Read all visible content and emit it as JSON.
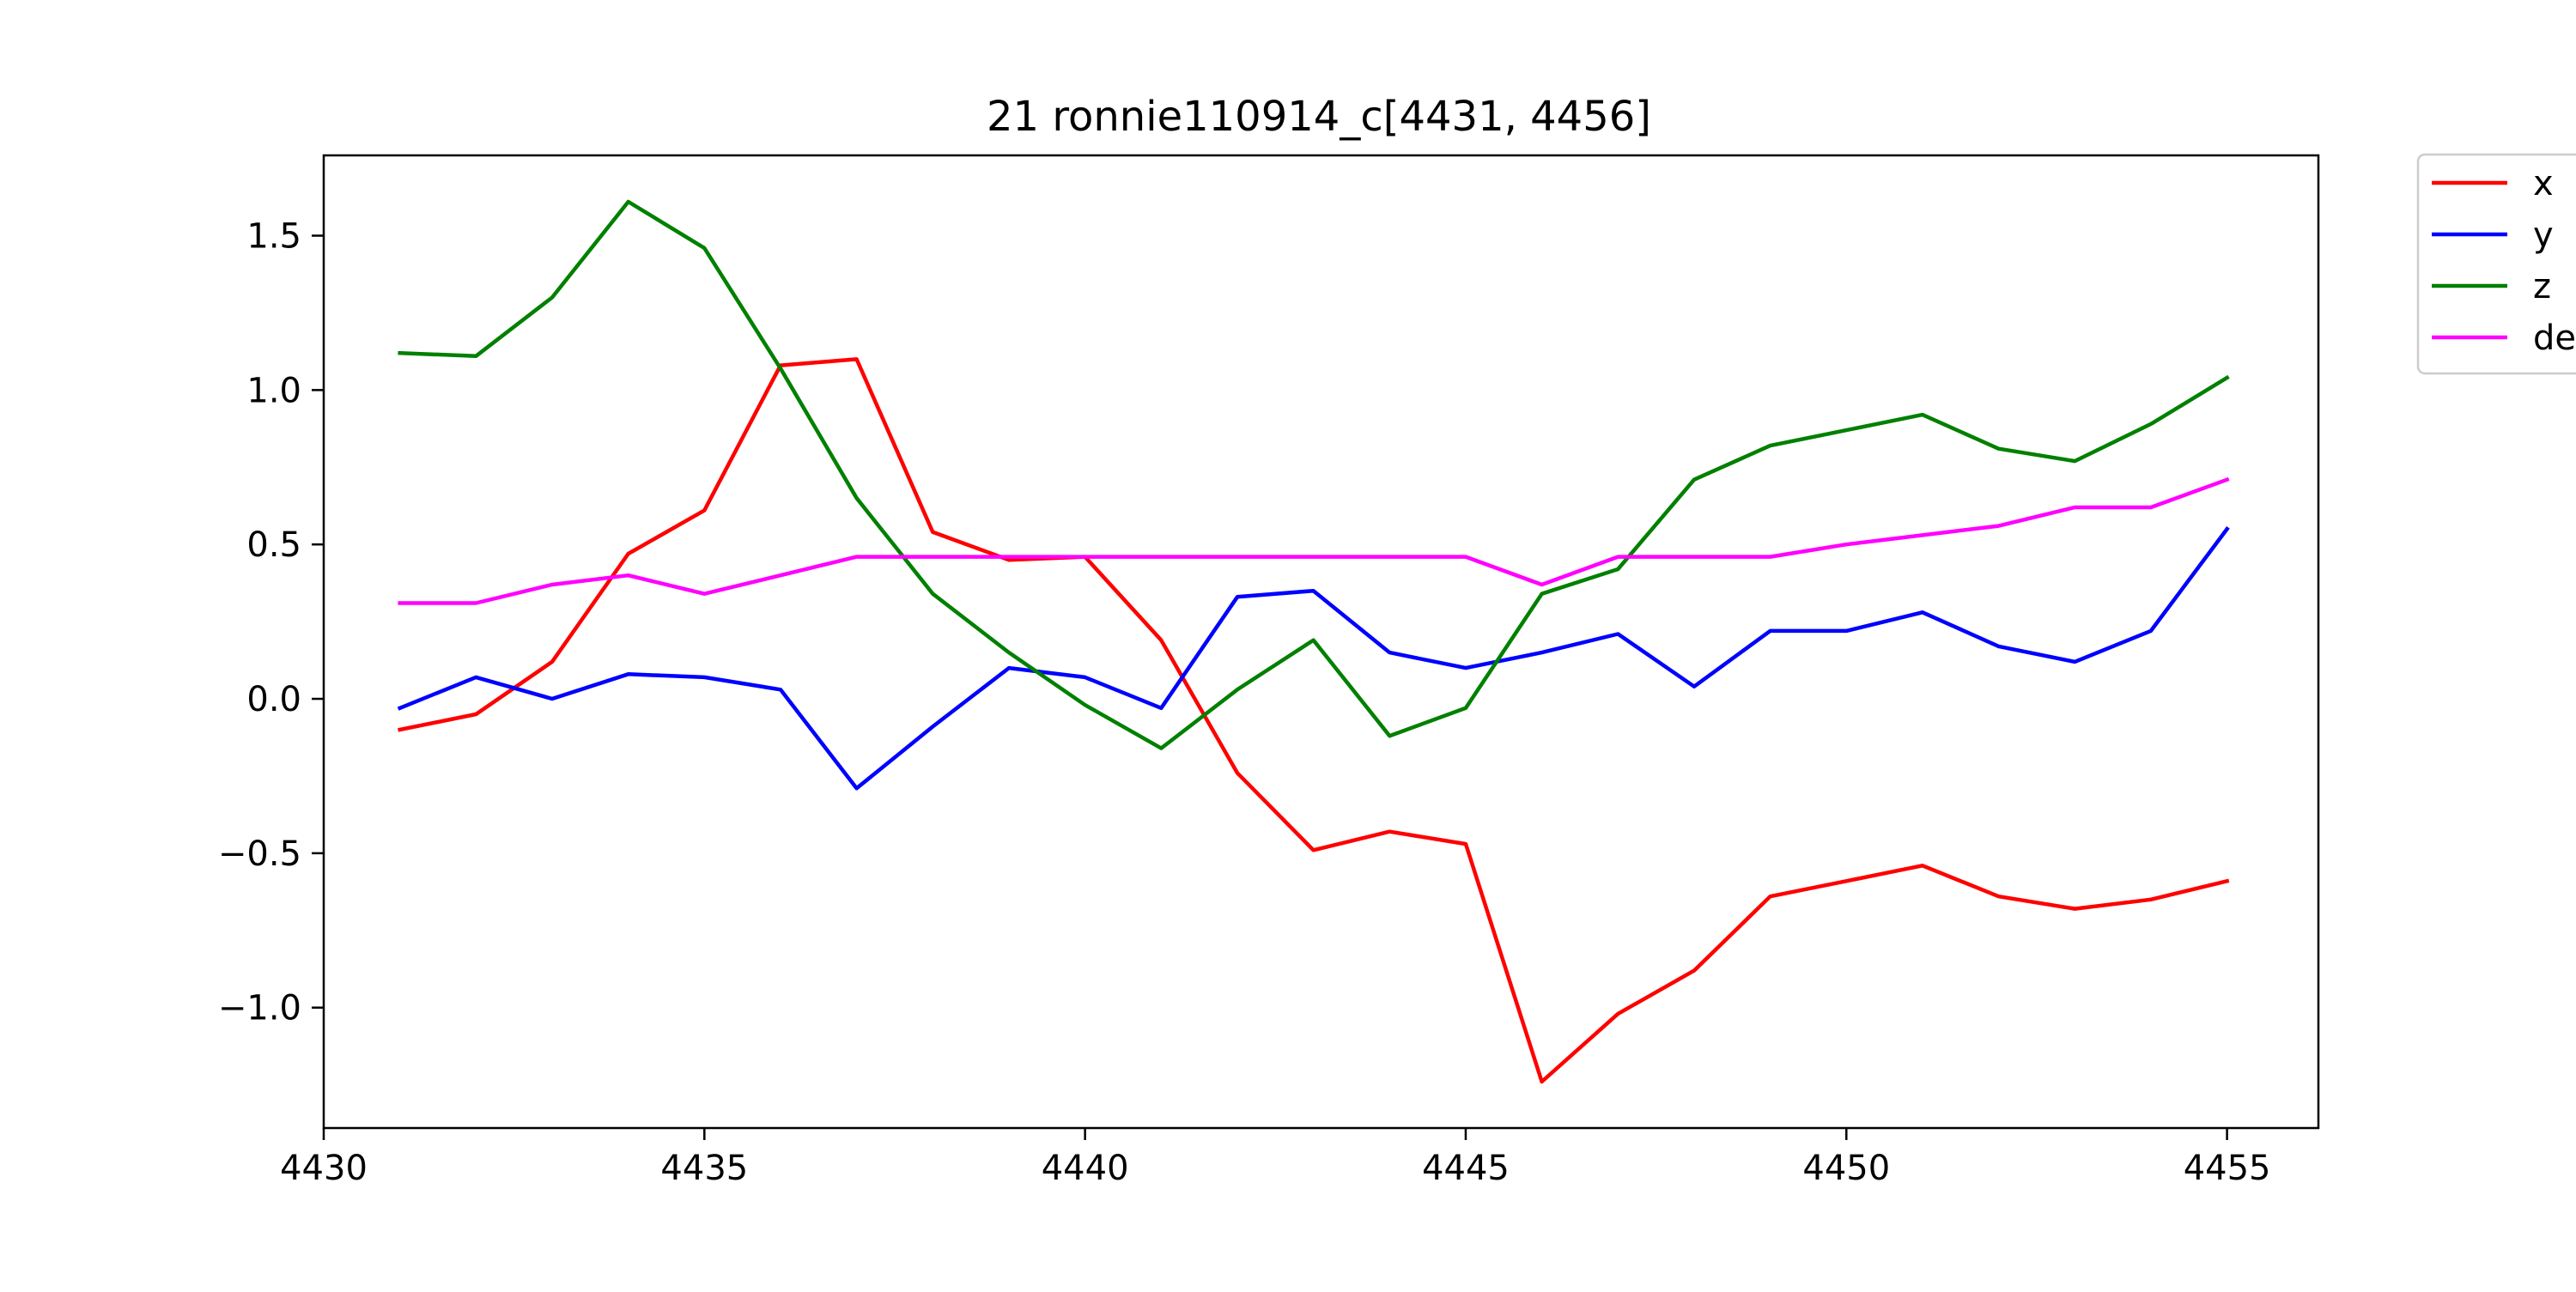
{
  "chart_data": {
    "type": "line",
    "title": "21 ronnie110914_c[4431, 4456]",
    "xlabel": "",
    "ylabel": "",
    "x": [
      4431,
      4432,
      4433,
      4434,
      4435,
      4436,
      4437,
      4438,
      4439,
      4440,
      4441,
      4442,
      4443,
      4444,
      4445,
      4446,
      4447,
      4448,
      4449,
      4450,
      4451,
      4452,
      4453,
      4454,
      4455
    ],
    "xlim": [
      4430.0,
      4456.2
    ],
    "ylim": [
      -1.39,
      1.76
    ],
    "xticks": [
      4430,
      4435,
      4440,
      4445,
      4450,
      4455
    ],
    "xtick_labels": [
      "4430",
      "4435",
      "4440",
      "4445",
      "4450",
      "4455"
    ],
    "yticks": [
      -1.0,
      -0.5,
      0.0,
      0.5,
      1.0,
      1.5
    ],
    "ytick_labels": [
      "−1.0",
      "−0.5",
      "0.0",
      "0.5",
      "1.0",
      "1.5"
    ],
    "grid": false,
    "legend_position": "outside-top-right",
    "series": [
      {
        "name": "x",
        "color": "#ff0000",
        "values": [
          -0.1,
          -0.05,
          0.12,
          0.47,
          0.61,
          1.08,
          1.1,
          0.54,
          0.45,
          0.46,
          0.19,
          -0.24,
          -0.49,
          -0.43,
          -0.47,
          -1.24,
          -1.02,
          -0.88,
          -0.64,
          -0.59,
          -0.54,
          -0.64,
          -0.68,
          -0.65,
          -0.59
        ]
      },
      {
        "name": "y",
        "color": "#0000ff",
        "values": [
          -0.03,
          0.07,
          0.0,
          0.08,
          0.07,
          0.03,
          -0.29,
          -0.09,
          0.1,
          0.07,
          -0.03,
          0.33,
          0.35,
          0.15,
          0.1,
          0.15,
          0.21,
          0.04,
          0.22,
          0.22,
          0.28,
          0.17,
          0.12,
          0.22,
          0.55
        ]
      },
      {
        "name": "z",
        "color": "#008000",
        "values": [
          1.12,
          1.11,
          1.3,
          1.61,
          1.46,
          1.07,
          0.65,
          0.34,
          0.15,
          -0.02,
          -0.16,
          0.03,
          0.19,
          -0.12,
          -0.03,
          0.34,
          0.42,
          0.71,
          0.82,
          0.87,
          0.92,
          0.81,
          0.77,
          0.89,
          1.04
        ]
      },
      {
        "name": "de",
        "color": "#ff00ff",
        "values": [
          0.31,
          0.31,
          0.37,
          0.4,
          0.34,
          0.4,
          0.46,
          0.46,
          0.46,
          0.46,
          0.46,
          0.46,
          0.46,
          0.46,
          0.46,
          0.37,
          0.46,
          0.46,
          0.46,
          0.5,
          0.53,
          0.56,
          0.62,
          0.62,
          0.71
        ]
      }
    ]
  }
}
